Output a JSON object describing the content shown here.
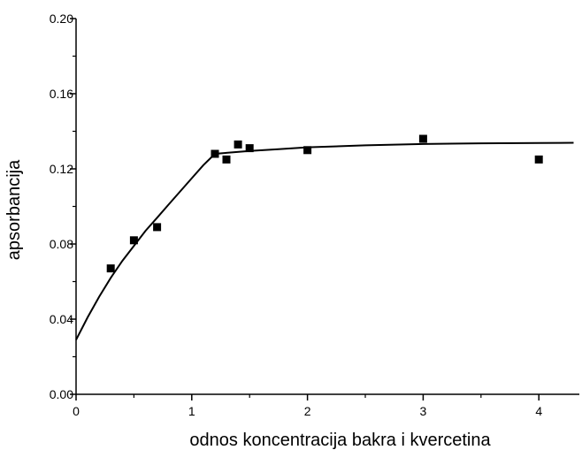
{
  "chart_data": {
    "type": "scatter",
    "xlabel": "odnos koncentracija bakra i kvercetina",
    "ylabel": "apsorbancija",
    "xlim": [
      0,
      4.35
    ],
    "ylim": [
      0,
      0.2
    ],
    "x_ticks": [
      0,
      1,
      2,
      3,
      4
    ],
    "x_tick_labels": [
      "0",
      "1",
      "2",
      "3",
      "4"
    ],
    "y_ticks": [
      0,
      0.04,
      0.08,
      0.12,
      0.16,
      0.2
    ],
    "y_tick_labels": [
      "0.00",
      "0.04",
      "0.08",
      "0.12",
      "0.16",
      "0.20"
    ],
    "grid": false,
    "series": [
      {
        "kind": "points",
        "marker": "square",
        "color": "#000000",
        "x": [
          0.3,
          0.5,
          0.7,
          1.2,
          1.3,
          1.4,
          1.5,
          2.0,
          3.0,
          4.0
        ],
        "y": [
          0.067,
          0.082,
          0.089,
          0.128,
          0.125,
          0.133,
          0.131,
          0.13,
          0.136,
          0.125
        ]
      },
      {
        "kind": "fit-line",
        "color": "#000000",
        "x": [
          0,
          0.1,
          0.2,
          0.3,
          0.4,
          0.5,
          0.6,
          0.7,
          0.8,
          0.9,
          1.0,
          1.1,
          1.2,
          1.3,
          1.5,
          1.75,
          2.0,
          2.5,
          3.0,
          3.5,
          4.0,
          4.3
        ],
        "y": [
          0.029,
          0.041,
          0.052,
          0.062,
          0.071,
          0.079,
          0.087,
          0.094,
          0.101,
          0.108,
          0.115,
          0.122,
          0.128,
          0.1285,
          0.1295,
          0.1305,
          0.1315,
          0.1325,
          0.1332,
          0.1336,
          0.1338,
          0.1339
        ]
      }
    ]
  }
}
